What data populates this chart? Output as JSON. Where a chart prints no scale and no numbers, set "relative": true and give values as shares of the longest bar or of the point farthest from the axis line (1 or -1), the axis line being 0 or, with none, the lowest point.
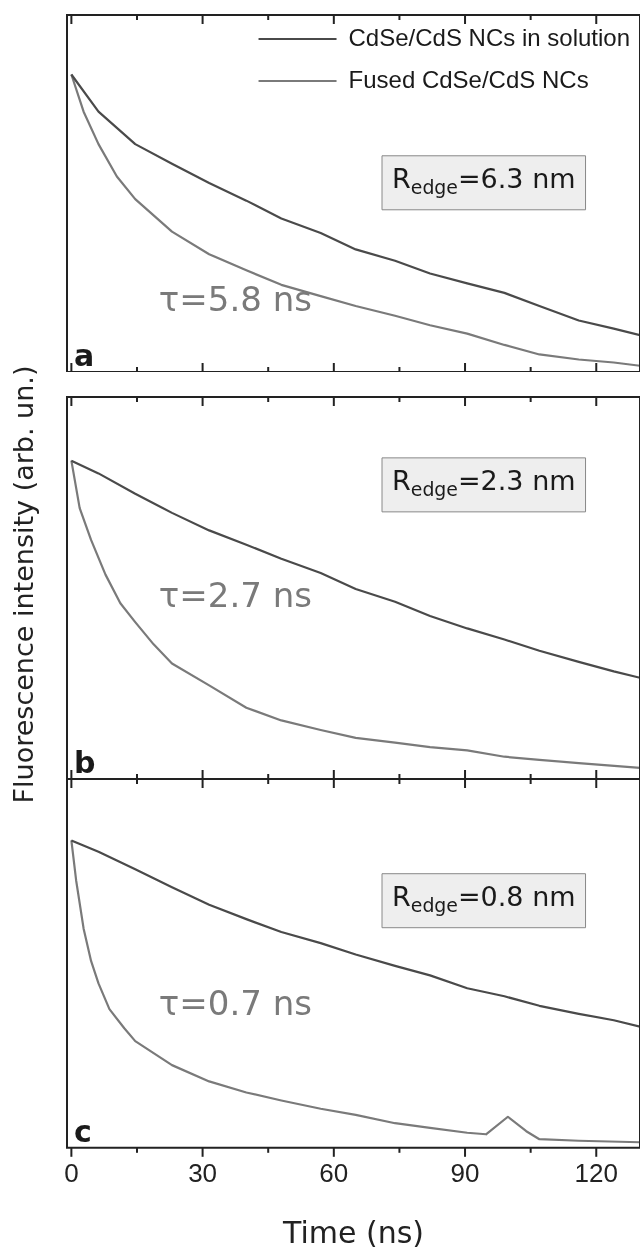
{
  "chart_data": [
    {
      "type": "line",
      "relative": true,
      "xlim": [
        -1,
        130
      ],
      "xticks": [
        0,
        {
          "value": 15,
          "label": null
        },
        30,
        {
          "value": 45,
          "label": null
        },
        60,
        {
          "value": 75,
          "label": null
        },
        90,
        {
          "value": 105,
          "label": null
        },
        120
      ],
      "tick_labels": false,
      "legend": "top right",
      "grid": false,
      "marker": "none",
      "line_style": "solid",
      "annotations": [
        "a",
        "τ=5.8 ns",
        "R$_{edge}$=6.3 nm"
      ],
      "series": [
        {
          "name": "CdSe/CdS NCs in solution",
          "color": "#4a4a4a",
          "x": [
            0,
            6.2,
            14.6,
            23,
            31.5,
            40,
            48,
            57,
            65,
            74,
            82,
            90.5,
            99,
            107,
            116,
            124,
            130
          ],
          "values": [
            1,
            0.875,
            0.766,
            0.7,
            0.635,
            0.576,
            0.516,
            0.467,
            0.412,
            0.374,
            0.331,
            0.298,
            0.266,
            0.222,
            0.173,
            0.146,
            0.124
          ]
        },
        {
          "name": "Fused CdSe/CdS NCs",
          "color": "#7a7a7a",
          "x": [
            0,
            2.8,
            6.2,
            10.4,
            14.6,
            23,
            31.5,
            40,
            48,
            57,
            65,
            74,
            82,
            90.5,
            99,
            107,
            116,
            124,
            130
          ],
          "values": [
            1,
            0.875,
            0.766,
            0.657,
            0.581,
            0.472,
            0.396,
            0.342,
            0.293,
            0.255,
            0.222,
            0.189,
            0.157,
            0.129,
            0.091,
            0.059,
            0.042,
            0.032,
            0.021
          ]
        }
      ]
    },
    {
      "type": "line",
      "relative": true,
      "xlim": [
        -1,
        130
      ],
      "xticks": [
        0,
        {
          "value": 15,
          "label": null
        },
        30,
        {
          "value": 45,
          "label": null
        },
        60,
        {
          "value": 75,
          "label": null
        },
        90,
        {
          "value": 105,
          "label": null
        },
        120
      ],
      "tick_labels": false,
      "grid": false,
      "marker": "none",
      "line_style": "solid",
      "ylabel": "Fluorescence intensity (arb. un.)",
      "annotations": [
        "b",
        "τ=2.7 ns",
        "R$_{edge}$=2.3 nm"
      ],
      "series": [
        {
          "color": "#4a4a4a",
          "x": [
            0,
            6.2,
            14.6,
            23,
            31.5,
            40,
            48,
            57,
            65,
            74,
            82,
            90.5,
            99,
            107,
            116,
            124,
            130
          ],
          "values": [
            1,
            0.96,
            0.896,
            0.836,
            0.781,
            0.736,
            0.692,
            0.647,
            0.597,
            0.557,
            0.512,
            0.473,
            0.438,
            0.403,
            0.368,
            0.338,
            0.318
          ]
        },
        {
          "color": "#7a7a7a",
          "x": [
            0,
            1.9,
            4.5,
            7.8,
            11.2,
            14.6,
            18.8,
            23,
            31.5,
            40,
            48,
            57,
            65,
            74,
            82,
            90.5,
            99,
            107,
            116,
            130
          ],
          "values": [
            1,
            0.851,
            0.751,
            0.642,
            0.552,
            0.493,
            0.423,
            0.363,
            0.294,
            0.224,
            0.184,
            0.154,
            0.129,
            0.114,
            0.1,
            0.09,
            0.07,
            0.06,
            0.05,
            0.035
          ]
        }
      ]
    },
    {
      "type": "line",
      "relative": true,
      "xlim": [
        -1,
        130
      ],
      "xticks": [
        0,
        {
          "value": 15,
          "label": null
        },
        30,
        {
          "value": 45,
          "label": null
        },
        60,
        {
          "value": 75,
          "label": null
        },
        90,
        {
          "value": 105,
          "label": null
        },
        120
      ],
      "tick_labels": "x",
      "grid": false,
      "marker": "none",
      "line_style": "solid",
      "xlabel": "Time (ns)",
      "annotations": [
        "c",
        "τ=0.7 ns",
        "R$_{edge}$=0.8 nm"
      ],
      "series": [
        {
          "color": "#4a4a4a",
          "x": [
            0,
            6.2,
            14.6,
            23,
            31.5,
            40,
            48,
            57,
            65,
            74,
            82,
            90.5,
            99,
            107,
            116,
            124,
            130
          ],
          "values": [
            1,
            0.963,
            0.906,
            0.848,
            0.791,
            0.744,
            0.702,
            0.666,
            0.629,
            0.592,
            0.561,
            0.519,
            0.493,
            0.462,
            0.436,
            0.415,
            0.394
          ]
        },
        {
          "color": "#7a7a7a",
          "x": [
            0,
            1.1,
            2.8,
            4.5,
            6.2,
            8.7,
            12.1,
            14.6,
            23,
            31.5,
            40,
            48,
            57,
            65,
            74,
            82,
            90.5,
            94.8,
            99.8,
            104,
            107,
            116,
            130
          ],
          "values": [
            1,
            0.869,
            0.713,
            0.608,
            0.535,
            0.451,
            0.389,
            0.347,
            0.269,
            0.216,
            0.18,
            0.154,
            0.127,
            0.107,
            0.08,
            0.065,
            0.049,
            0.044,
            0.101,
            0.054,
            0.028,
            0.023,
            0.018
          ]
        }
      ]
    }
  ]
}
